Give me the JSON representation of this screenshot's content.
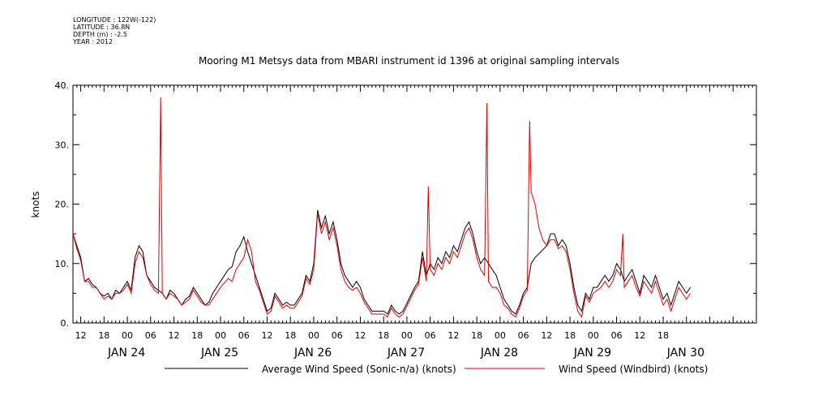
{
  "meta": {
    "longitude": "LONGITUDE : 122W(-122)",
    "latitude": "LATITUDE : 36.8N",
    "depth": "DEPTH (m) : -2.5",
    "year": "YEAR : 2012"
  },
  "chart_data": {
    "type": "line",
    "title": "Mooring M1 Metsys data from MBARI instrument id 1396 at original sampling intervals",
    "ylabel": "knots",
    "xlabel": "",
    "ylim": [
      0,
      40
    ],
    "xlim_hours": [
      -14,
      162
    ],
    "y_ticks": [
      "0.",
      "10.",
      "20.",
      "30.",
      "40."
    ],
    "hour_tick_labels": [
      "12",
      "18",
      "00",
      "06",
      "12",
      "18",
      "00",
      "06",
      "12",
      "18",
      "00",
      "06",
      "12",
      "18",
      "00",
      "06",
      "12",
      "18",
      "00",
      "06",
      "12",
      "18",
      "00",
      "06",
      "12",
      "18"
    ],
    "day_labels": [
      "JAN 24",
      "JAN 25",
      "JAN 26",
      "JAN 27",
      "JAN 28",
      "JAN 29",
      "JAN 30"
    ],
    "grid": false,
    "legend_position": "bottom",
    "series": [
      {
        "name": "Average Wind Speed (Sonic-n/a) (knots)",
        "color": "#000000",
        "points": [
          [
            -14,
            15
          ],
          [
            -13,
            13
          ],
          [
            -12,
            11
          ],
          [
            -11,
            7
          ],
          [
            -10,
            7.5
          ],
          [
            -9,
            6.5
          ],
          [
            -8,
            6
          ],
          [
            -7,
            5
          ],
          [
            -6,
            4.5
          ],
          [
            -5,
            5
          ],
          [
            -4,
            4
          ],
          [
            -3,
            5.5
          ],
          [
            -2,
            5
          ],
          [
            -1,
            6
          ],
          [
            0,
            7
          ],
          [
            1,
            5.5
          ],
          [
            2,
            11
          ],
          [
            3,
            13
          ],
          [
            4,
            12
          ],
          [
            5,
            8
          ],
          [
            6,
            7
          ],
          [
            7,
            6
          ],
          [
            8,
            5.5
          ],
          [
            9,
            5
          ],
          [
            10,
            4
          ],
          [
            11,
            5.5
          ],
          [
            12,
            5
          ],
          [
            13,
            4
          ],
          [
            14,
            3
          ],
          [
            15,
            4
          ],
          [
            16,
            4.5
          ],
          [
            17,
            6
          ],
          [
            18,
            5
          ],
          [
            19,
            4
          ],
          [
            20,
            3
          ],
          [
            21,
            3.5
          ],
          [
            22,
            5
          ],
          [
            24,
            7
          ],
          [
            26,
            9
          ],
          [
            27,
            9.5
          ],
          [
            28,
            12
          ],
          [
            29,
            13
          ],
          [
            30,
            14.5
          ],
          [
            31,
            12
          ],
          [
            32,
            10
          ],
          [
            33,
            8
          ],
          [
            34,
            6
          ],
          [
            35,
            4
          ],
          [
            36,
            2
          ],
          [
            37,
            2.5
          ],
          [
            38,
            5
          ],
          [
            39,
            4
          ],
          [
            40,
            3
          ],
          [
            41,
            3.5
          ],
          [
            42,
            3
          ],
          [
            43,
            3
          ],
          [
            44,
            4
          ],
          [
            45,
            5
          ],
          [
            46,
            8
          ],
          [
            47,
            7
          ],
          [
            48,
            10
          ],
          [
            49,
            19
          ],
          [
            50,
            16
          ],
          [
            51,
            18
          ],
          [
            52,
            15
          ],
          [
            53,
            17
          ],
          [
            54,
            14
          ],
          [
            55,
            10
          ],
          [
            56,
            8
          ],
          [
            57,
            7
          ],
          [
            58,
            6
          ],
          [
            59,
            7
          ],
          [
            60,
            6
          ],
          [
            61,
            4
          ],
          [
            62,
            3
          ],
          [
            63,
            2
          ],
          [
            64,
            2
          ],
          [
            66,
            2
          ],
          [
            67,
            1.5
          ],
          [
            68,
            3
          ],
          [
            69,
            2
          ],
          [
            70,
            1.5
          ],
          [
            71,
            2
          ],
          [
            74,
            6
          ],
          [
            75,
            7
          ],
          [
            76,
            12
          ],
          [
            77,
            8
          ],
          [
            78,
            10
          ],
          [
            79,
            9
          ],
          [
            80,
            11
          ],
          [
            81,
            10
          ],
          [
            82,
            12
          ],
          [
            83,
            11
          ],
          [
            84,
            13
          ],
          [
            85,
            12
          ],
          [
            86,
            14
          ],
          [
            87,
            16
          ],
          [
            88,
            17
          ],
          [
            89,
            15
          ],
          [
            90,
            12
          ],
          [
            91,
            10
          ],
          [
            92,
            11
          ],
          [
            93,
            10
          ],
          [
            94,
            9
          ],
          [
            95,
            8
          ],
          [
            96,
            6
          ],
          [
            97,
            4
          ],
          [
            98,
            3
          ],
          [
            99,
            2
          ],
          [
            100,
            1.5
          ],
          [
            101,
            3
          ],
          [
            102,
            5
          ],
          [
            103,
            6
          ],
          [
            104,
            10
          ],
          [
            105,
            11
          ],
          [
            108,
            13
          ],
          [
            109,
            15
          ],
          [
            110,
            15
          ],
          [
            111,
            13
          ],
          [
            112,
            14
          ],
          [
            113,
            13
          ],
          [
            114,
            10
          ],
          [
            115,
            6
          ],
          [
            116,
            3
          ],
          [
            117,
            2
          ],
          [
            118,
            5
          ],
          [
            119,
            4
          ],
          [
            120,
            6
          ],
          [
            121,
            6
          ],
          [
            122,
            7
          ],
          [
            123,
            8
          ],
          [
            124,
            7
          ],
          [
            125,
            8
          ],
          [
            126,
            10
          ],
          [
            127,
            9
          ],
          [
            128,
            7
          ],
          [
            129,
            8
          ],
          [
            130,
            9
          ],
          [
            131,
            7
          ],
          [
            132,
            5
          ],
          [
            133,
            8
          ],
          [
            134,
            7
          ],
          [
            135,
            6
          ],
          [
            136,
            8
          ],
          [
            137,
            6
          ],
          [
            138,
            4
          ],
          [
            139,
            5
          ],
          [
            140,
            3
          ],
          [
            141,
            5
          ],
          [
            142,
            7
          ],
          [
            143,
            6
          ],
          [
            144,
            5
          ],
          [
            145,
            6
          ]
        ]
      },
      {
        "name": "Wind Speed (Windbird) (knots)",
        "color": "#e00000",
        "points": [
          [
            -14,
            15
          ],
          [
            -13,
            12.5
          ],
          [
            -12,
            10.5
          ],
          [
            -11,
            7
          ],
          [
            -10,
            7
          ],
          [
            -9,
            6
          ],
          [
            -8,
            6
          ],
          [
            -7,
            5
          ],
          [
            -6,
            4
          ],
          [
            -5,
            4.5
          ],
          [
            -4,
            4
          ],
          [
            -3,
            5
          ],
          [
            -2,
            5
          ],
          [
            -1,
            5.5
          ],
          [
            0,
            6.5
          ],
          [
            1,
            5
          ],
          [
            2,
            10
          ],
          [
            3,
            12
          ],
          [
            4,
            11
          ],
          [
            5,
            8
          ],
          [
            6,
            6.5
          ],
          [
            7,
            5.5
          ],
          [
            8,
            5
          ],
          [
            8.6,
            38
          ],
          [
            9,
            5
          ],
          [
            10,
            4
          ],
          [
            11,
            5
          ],
          [
            12,
            4.5
          ],
          [
            13,
            4
          ],
          [
            14,
            3
          ],
          [
            15,
            3.5
          ],
          [
            16,
            4
          ],
          [
            17,
            5.5
          ],
          [
            18,
            4.5
          ],
          [
            19,
            3.5
          ],
          [
            20,
            3
          ],
          [
            21,
            3
          ],
          [
            22,
            4
          ],
          [
            24,
            6
          ],
          [
            26,
            7.5
          ],
          [
            27,
            7
          ],
          [
            28,
            9
          ],
          [
            30,
            11
          ],
          [
            31,
            14
          ],
          [
            32,
            12
          ],
          [
            33,
            7
          ],
          [
            34,
            5.5
          ],
          [
            35,
            3.5
          ],
          [
            36,
            1.5
          ],
          [
            37,
            2
          ],
          [
            38,
            4.5
          ],
          [
            39,
            3.5
          ],
          [
            40,
            2.5
          ],
          [
            41,
            3
          ],
          [
            42,
            2.5
          ],
          [
            43,
            2.5
          ],
          [
            44,
            3.5
          ],
          [
            45,
            4.5
          ],
          [
            46,
            7.5
          ],
          [
            47,
            6.5
          ],
          [
            48,
            9
          ],
          [
            49,
            18.5
          ],
          [
            50,
            15
          ],
          [
            51,
            17
          ],
          [
            52,
            14
          ],
          [
            53,
            16
          ],
          [
            54,
            13
          ],
          [
            55,
            9
          ],
          [
            56,
            7
          ],
          [
            57,
            6
          ],
          [
            58,
            5.5
          ],
          [
            59,
            6
          ],
          [
            60,
            5
          ],
          [
            61,
            3.5
          ],
          [
            62,
            2.5
          ],
          [
            63,
            1.5
          ],
          [
            64,
            1.5
          ],
          [
            66,
            1.5
          ],
          [
            67,
            1
          ],
          [
            68,
            2.5
          ],
          [
            69,
            1.5
          ],
          [
            70,
            1
          ],
          [
            71,
            1.5
          ],
          [
            74,
            5.5
          ],
          [
            75,
            6.5
          ],
          [
            76,
            11
          ],
          [
            77,
            7
          ],
          [
            77.5,
            23
          ],
          [
            78,
            9
          ],
          [
            79,
            8
          ],
          [
            80,
            10
          ],
          [
            81,
            9
          ],
          [
            82,
            11
          ],
          [
            83,
            10
          ],
          [
            84,
            12
          ],
          [
            85,
            11
          ],
          [
            86,
            13
          ],
          [
            87,
            15
          ],
          [
            88,
            16
          ],
          [
            89,
            14
          ],
          [
            90,
            11
          ],
          [
            91,
            9
          ],
          [
            92,
            8
          ],
          [
            92.6,
            37
          ],
          [
            93,
            7
          ],
          [
            94,
            6
          ],
          [
            95,
            6
          ],
          [
            96,
            5
          ],
          [
            97,
            3
          ],
          [
            98,
            2.5
          ],
          [
            99,
            1.5
          ],
          [
            100,
            1
          ],
          [
            101,
            2.5
          ],
          [
            102,
            4.5
          ],
          [
            103,
            5.5
          ],
          [
            103.6,
            34
          ],
          [
            104,
            22
          ],
          [
            105,
            20
          ],
          [
            106,
            16
          ],
          [
            107,
            14
          ],
          [
            108,
            13
          ],
          [
            109,
            14
          ],
          [
            110,
            14
          ],
          [
            111,
            12.5
          ],
          [
            112,
            13
          ],
          [
            113,
            12
          ],
          [
            114,
            9
          ],
          [
            115,
            5
          ],
          [
            116,
            2
          ],
          [
            117,
            1
          ],
          [
            118,
            4.5
          ],
          [
            119,
            3.5
          ],
          [
            120,
            5
          ],
          [
            121,
            5.5
          ],
          [
            122,
            6
          ],
          [
            123,
            7
          ],
          [
            124,
            6
          ],
          [
            125,
            7
          ],
          [
            126,
            9
          ],
          [
            127,
            8
          ],
          [
            127.6,
            15
          ],
          [
            128,
            6
          ],
          [
            129,
            7
          ],
          [
            130,
            8
          ],
          [
            131,
            6
          ],
          [
            132,
            4.5
          ],
          [
            133,
            7
          ],
          [
            134,
            6
          ],
          [
            135,
            5
          ],
          [
            136,
            7
          ],
          [
            137,
            5
          ],
          [
            138,
            3
          ],
          [
            139,
            4
          ],
          [
            140,
            2
          ],
          [
            141,
            4
          ],
          [
            142,
            6
          ],
          [
            143,
            5
          ],
          [
            144,
            4
          ],
          [
            145,
            5
          ]
        ]
      }
    ]
  }
}
